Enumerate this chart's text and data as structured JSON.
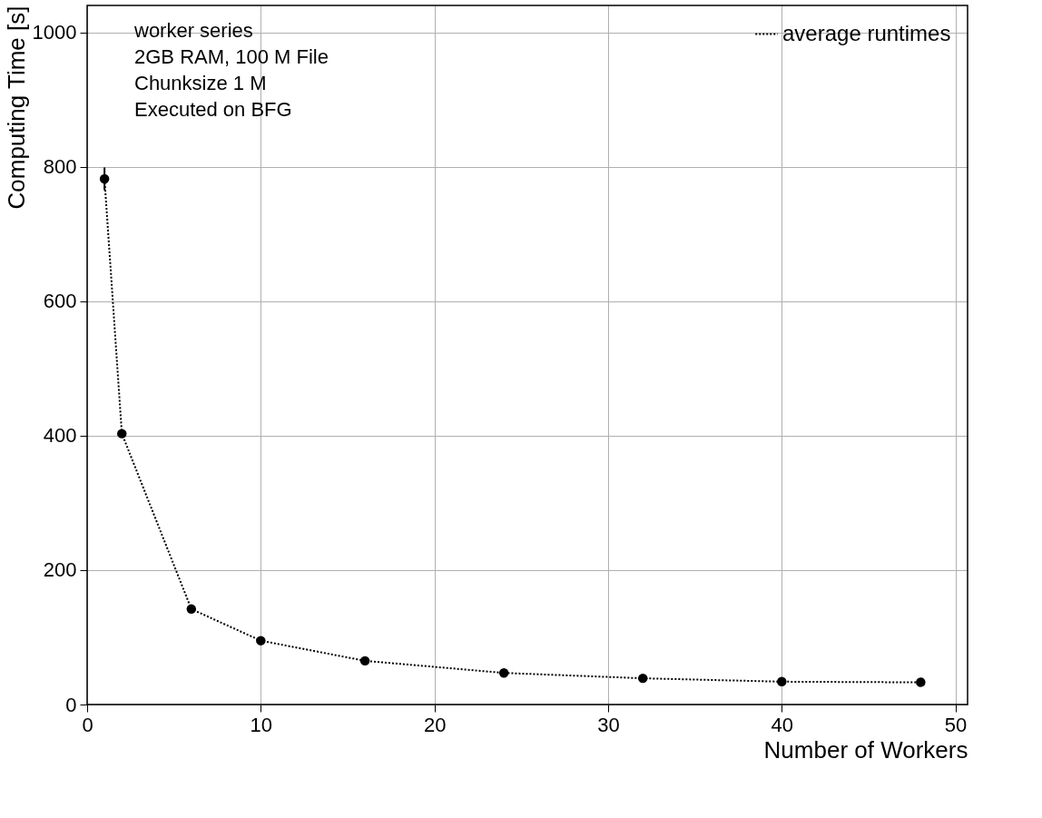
{
  "chart_data": {
    "type": "line",
    "xlabel": "Number of Workers",
    "ylabel": "Computing Time [s]",
    "x": [
      1,
      2,
      6,
      10,
      16,
      24,
      32,
      40,
      48
    ],
    "series": [
      {
        "name": "average runtimes",
        "color": "#000000",
        "values": [
          782,
          403,
          142,
          95,
          65,
          47,
          39,
          34,
          33
        ],
        "errors": [
          17,
          null,
          null,
          null,
          null,
          null,
          null,
          null,
          null
        ]
      }
    ],
    "xlim": [
      0,
      50.7
    ],
    "ylim": [
      0,
      1040
    ],
    "xticks": [
      0,
      10,
      20,
      30,
      40,
      50
    ],
    "yticks": [
      0,
      200,
      400,
      600,
      800,
      1000
    ],
    "grid": true,
    "legend": "top right",
    "marker": "circle",
    "line_style": "dotted",
    "annotations": [
      "worker series",
      "2GB RAM, 100 M File",
      "Chunksize 1 M",
      "Executed on BFG"
    ]
  }
}
